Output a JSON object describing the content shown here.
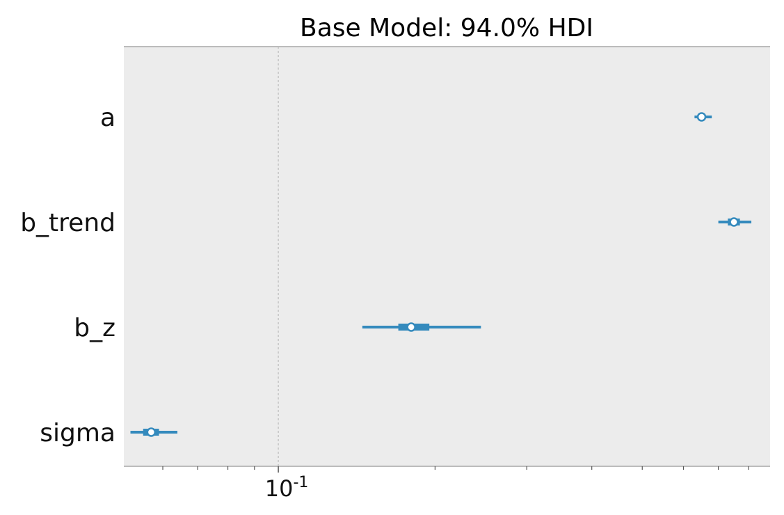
{
  "chart_data": {
    "type": "forest",
    "title": "Base Model: 94.0% HDI",
    "xscale": "log",
    "xlim": [
      0.0505,
      0.88
    ],
    "reference_line": 0.1,
    "x_tick_labels": [
      {
        "value": 0.1,
        "base": "10",
        "exponent": "-1"
      }
    ],
    "minor_ticks": [
      0.06,
      0.07,
      0.08,
      0.09,
      0.2,
      0.3,
      0.4,
      0.5,
      0.6,
      0.7,
      0.8
    ],
    "parameters": [
      "a",
      "b_trend",
      "b_z",
      "sigma"
    ],
    "estimates": [
      {
        "name": "a",
        "mean": 0.65,
        "hdi_94": [
          0.63,
          0.68
        ],
        "iqr": [
          0.64,
          0.66
        ]
      },
      {
        "name": "b_trend",
        "mean": 0.75,
        "hdi_94": [
          0.7,
          0.81
        ],
        "iqr": [
          0.73,
          0.77
        ]
      },
      {
        "name": "b_z",
        "mean": 0.18,
        "hdi_94": [
          0.145,
          0.245
        ],
        "iqr": [
          0.17,
          0.195
        ]
      },
      {
        "name": "sigma",
        "mean": 0.057,
        "hdi_94": [
          0.052,
          0.064
        ],
        "iqr": [
          0.055,
          0.059
        ]
      }
    ],
    "colors": {
      "marker": "#348abd",
      "plot_background": "#ececec",
      "reference_line": "#b0b0b0",
      "frame": "#bcbcbc"
    }
  }
}
